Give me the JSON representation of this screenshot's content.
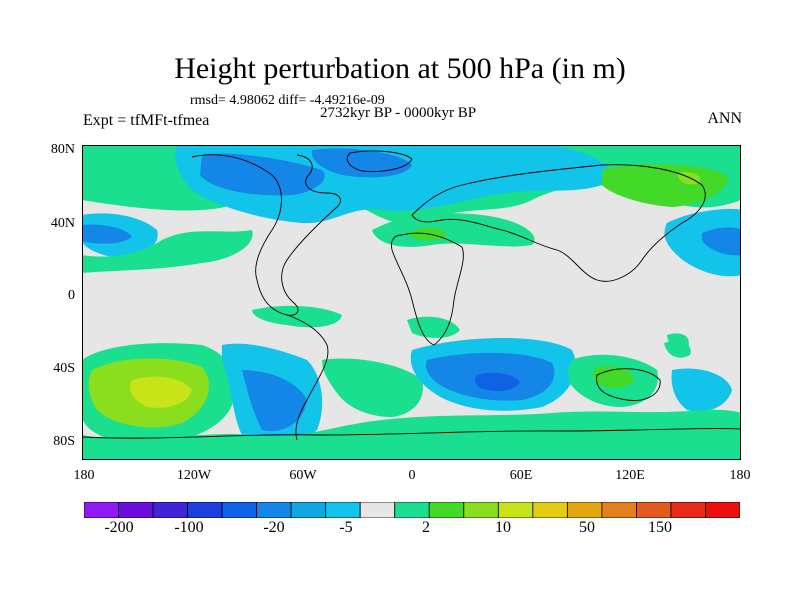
{
  "title": "Height perturbation at 500 hPa (in m)",
  "stats": "rmsd= 4.98062 diff= -4.49216e-09",
  "subtitle": "2732kyr BP - 0000kyr BP",
  "experiment": "Expt = tfMFt-tfmea",
  "season": "ANN",
  "axes": {
    "lat_ticks": [
      "80N",
      "40N",
      "0",
      "40S",
      "80S"
    ],
    "lon_ticks": [
      "180",
      "120W",
      "60W",
      "0",
      "60E",
      "120E",
      "180"
    ]
  },
  "chart_data": {
    "type": "heatmap",
    "title": "Height perturbation at 500 hPa (in m)",
    "variable": "500 hPa geopotential height perturbation",
    "units": "m",
    "period": "2732kyr BP - 0000kyr BP",
    "season": "ANN",
    "rmsd": 4.98062,
    "diff": -4.49216e-09,
    "lon_range": [
      -180,
      180
    ],
    "lat_range": [
      -90,
      90
    ],
    "features": [
      {
        "region": "Arctic / North Atlantic",
        "sign": "negative",
        "range": "-20 to -5"
      },
      {
        "region": "Central Asia 40-70N",
        "sign": "positive",
        "range": "2 to 10"
      },
      {
        "region": "North Pacific ~30N",
        "sign": "negative",
        "range": "-20 to -5"
      },
      {
        "region": "South Pacific ~45S 140W",
        "sign": "positive",
        "range": "10 to 50"
      },
      {
        "region": "Southern Ocean ~50S 60E",
        "sign": "negative",
        "range": "-20 to -5"
      },
      {
        "region": "Antarctica",
        "sign": "positive",
        "range": "2 to 10"
      }
    ],
    "colorbar": {
      "colors": [
        "#8F1AF4",
        "#6A0CDB",
        "#4024D8",
        "#1E3FE0",
        "#1062E4",
        "#1386E8",
        "#0FA6E3",
        "#12C3EA",
        "#E6E6E6",
        "#19DF8F",
        "#43D928",
        "#8BDE1E",
        "#C6E417",
        "#E2CC14",
        "#E2A711",
        "#E4801C",
        "#E45A20",
        "#E72C1C",
        "#EB0F10"
      ],
      "labels": [
        "-200",
        "-100",
        "-20",
        "-5",
        "2",
        "10",
        "50",
        "150"
      ]
    }
  }
}
